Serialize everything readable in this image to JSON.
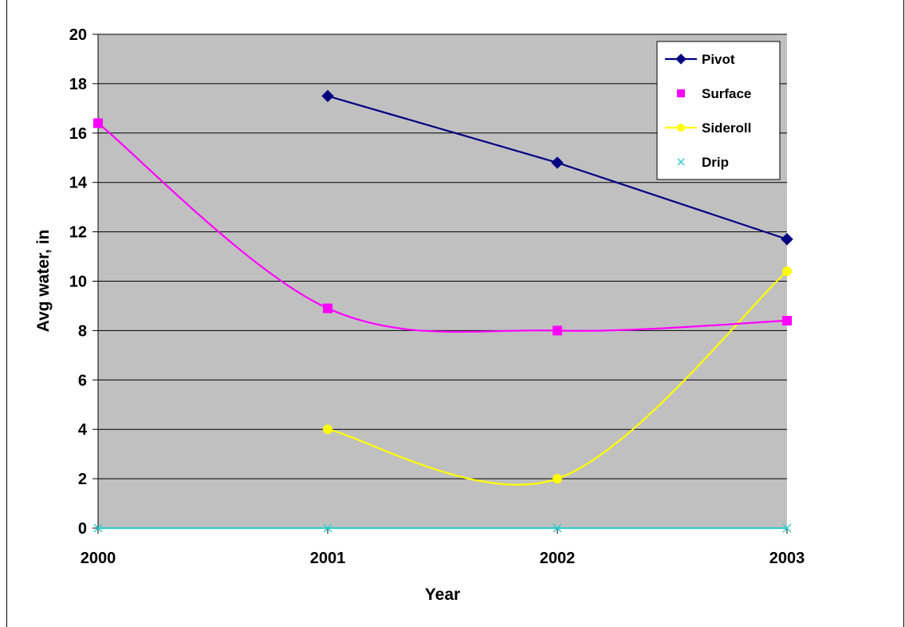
{
  "chart_data": {
    "type": "line",
    "title": "",
    "xlabel": "Year",
    "ylabel": "Avg water, in",
    "categories": [
      "2000",
      "2001",
      "2002",
      "2003"
    ],
    "ylim": [
      0,
      20
    ],
    "yticks": [
      "0",
      "2",
      "4",
      "6",
      "8",
      "10",
      "12",
      "14",
      "16",
      "18",
      "20"
    ],
    "grid": true,
    "legend_position": "top-right",
    "series": [
      {
        "name": "Pivot",
        "values": [
          null,
          17.5,
          14.8,
          11.7
        ],
        "color": "#000080",
        "marker": "diamond",
        "line": true,
        "smooth": false
      },
      {
        "name": "Surface",
        "values": [
          16.4,
          8.9,
          8.0,
          8.4
        ],
        "color": "#ff00ff",
        "marker": "square",
        "line": true,
        "smooth": true,
        "legend_line": false
      },
      {
        "name": "Sideroll",
        "values": [
          null,
          4.0,
          2.0,
          10.4
        ],
        "color": "#ffff00",
        "marker": "circle",
        "line": true,
        "smooth": true
      },
      {
        "name": "Drip",
        "values": [
          0,
          0,
          0,
          0
        ],
        "color": "#33cccc",
        "marker": "x",
        "line": true,
        "smooth": false,
        "legend_line": false
      }
    ]
  }
}
